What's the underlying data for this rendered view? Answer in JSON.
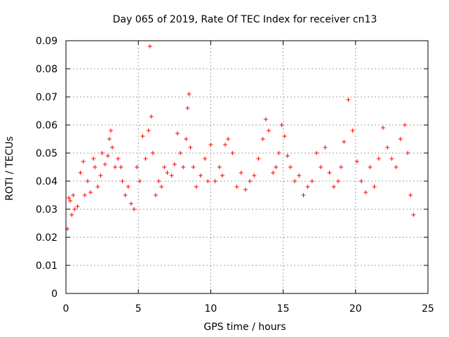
{
  "chart_data": {
    "type": "scatter",
    "title": "Day 065 of 2019, Rate Of TEC Index for receiver cn13",
    "xlabel": "GPS time / hours",
    "ylabel": "ROTI / TECUs",
    "xlim": [
      0,
      25
    ],
    "ylim": [
      0,
      0.09
    ],
    "x_ticks": [
      0,
      5,
      10,
      15,
      20,
      25
    ],
    "y_ticks": [
      0,
      0.01,
      0.02,
      0.03,
      0.04,
      0.05,
      0.06,
      0.07,
      0.08,
      0.09
    ],
    "grid": true,
    "marker": "plus",
    "color": "#ff0000",
    "series": [
      {
        "x": [
          0.1,
          0.2,
          0.3,
          0.4,
          0.5,
          0.6,
          0.8,
          1.0,
          1.2,
          1.3,
          1.5,
          1.7,
          1.9,
          2.0,
          2.2,
          2.4,
          2.5,
          2.7,
          2.9,
          3.0,
          3.1,
          3.2,
          3.4,
          3.6,
          3.8,
          3.9,
          4.1,
          4.3,
          4.5,
          4.7,
          4.9,
          5.1,
          5.3,
          5.5,
          5.7,
          5.8,
          5.9,
          6.0,
          6.2,
          6.4,
          6.6,
          6.8,
          7.0,
          7.3,
          7.5,
          7.7,
          7.9,
          8.1,
          8.3,
          8.4,
          8.5,
          8.6,
          8.8,
          9.0,
          9.3,
          9.6,
          9.8,
          10.0,
          10.3,
          10.6,
          10.8,
          11.0,
          11.2,
          11.5,
          11.8,
          12.1,
          12.4,
          12.7,
          13.0,
          13.3,
          13.6,
          13.8,
          14.0,
          14.3,
          14.5,
          14.7,
          14.9,
          15.1,
          15.3,
          15.5,
          15.8,
          16.1,
          16.4,
          16.7,
          17.0,
          17.3,
          17.6,
          17.9,
          18.2,
          18.5,
          18.8,
          19.0,
          19.2,
          19.5,
          19.8,
          20.1,
          20.4,
          20.7,
          21.0,
          21.3,
          21.6,
          21.9,
          22.2,
          22.5,
          22.8,
          23.1,
          23.4,
          23.6,
          23.8,
          24.0
        ],
        "y": [
          0.023,
          0.034,
          0.033,
          0.028,
          0.035,
          0.03,
          0.031,
          0.043,
          0.047,
          0.035,
          0.04,
          0.036,
          0.048,
          0.045,
          0.038,
          0.042,
          0.05,
          0.046,
          0.049,
          0.055,
          0.058,
          0.052,
          0.045,
          0.048,
          0.045,
          0.04,
          0.035,
          0.038,
          0.032,
          0.03,
          0.045,
          0.04,
          0.056,
          0.048,
          0.058,
          0.088,
          0.063,
          0.05,
          0.035,
          0.04,
          0.038,
          0.045,
          0.043,
          0.042,
          0.046,
          0.057,
          0.05,
          0.045,
          0.055,
          0.066,
          0.071,
          0.052,
          0.045,
          0.038,
          0.042,
          0.048,
          0.04,
          0.053,
          0.04,
          0.045,
          0.042,
          0.053,
          0.055,
          0.05,
          0.038,
          0.043,
          0.037,
          0.04,
          0.042,
          0.048,
          0.055,
          0.062,
          0.058,
          0.043,
          0.045,
          0.05,
          0.06,
          0.056,
          0.049,
          0.045,
          0.04,
          0.042,
          0.035,
          0.038,
          0.04,
          0.05,
          0.045,
          0.052,
          0.043,
          0.038,
          0.04,
          0.045,
          0.054,
          0.069,
          0.058,
          0.047,
          0.04,
          0.036,
          0.045,
          0.038,
          0.048,
          0.059,
          0.052,
          0.048,
          0.045,
          0.055,
          0.06,
          0.05,
          0.035,
          0.028
        ]
      }
    ]
  }
}
